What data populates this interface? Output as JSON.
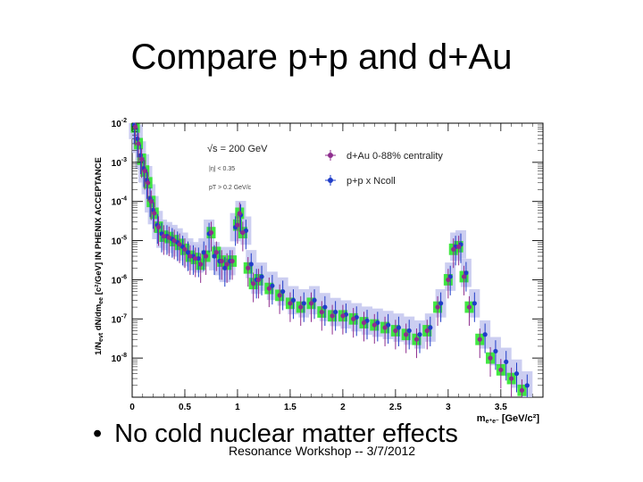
{
  "slide": {
    "title": "Compare p+p and d+Au",
    "bullet_marker": "•",
    "bullet": "No cold nuclear matter effects",
    "footer": "Resonance Workshop -- 3/7/2012"
  },
  "chart_data": {
    "type": "scatter",
    "title": "",
    "ylabel": "1/Nevt dN/dmee [c²/GeV] IN PHENIX ACCEPTANCE",
    "ylabel_parts": {
      "pre": "1/N",
      "sub1": "evt",
      "mid": " dN/dm",
      "sub2": "ee",
      "post": " [c²/GeV] IN PHENIX ACCEPTANCE"
    },
    "xlabel_parts": {
      "pre": "m",
      "sub": "e⁺e⁻",
      "post": " [GeV/c²]"
    },
    "x_scale": "linear",
    "y_scale": "log",
    "xlim": [
      0,
      3.9
    ],
    "ylim_exp": [
      -9,
      -2
    ],
    "xticks": [
      0,
      0.5,
      1,
      1.5,
      2,
      2.5,
      3,
      3.5
    ],
    "xtick_labels": [
      "0",
      "0.5",
      "1",
      "1.5",
      "2",
      "2.5",
      "3",
      "3.5"
    ],
    "yticks_exp": [
      -8,
      -7,
      -6,
      -5,
      -4,
      -3,
      -2
    ],
    "annotations": {
      "sqrt_s": "√s = 200 GeV",
      "eta_cut": "|η| < 0.35",
      "pt_cut": "pT > 0.2 GeV/c"
    },
    "legend_position": "top-right",
    "colors": {
      "dau": "#8e2d8e",
      "pp": "#1f3cc8",
      "sys_pp": "#c3c6ee",
      "sys_dau": "#2ee62e"
    },
    "series": [
      {
        "name": "d+Au 0-88% centrality",
        "x": [
          0.03,
          0.06,
          0.09,
          0.12,
          0.15,
          0.18,
          0.21,
          0.25,
          0.3,
          0.35,
          0.4,
          0.45,
          0.5,
          0.55,
          0.6,
          0.65,
          0.7,
          0.75,
          0.8,
          0.85,
          0.9,
          0.95,
          1.0,
          1.02,
          1.05,
          1.1,
          1.15,
          1.2,
          1.3,
          1.4,
          1.5,
          1.6,
          1.7,
          1.8,
          1.9,
          2.0,
          2.1,
          2.2,
          2.3,
          2.4,
          2.5,
          2.6,
          2.7,
          2.8,
          2.9,
          3.0,
          3.05,
          3.1,
          3.15,
          3.2,
          3.3,
          3.4,
          3.5,
          3.6,
          3.7
        ],
        "y": [
          0.008,
          0.003,
          0.0012,
          0.0006,
          0.0003,
          0.0001,
          5e-05,
          2.2e-05,
          1.3e-05,
          1.2e-05,
          1e-05,
          8e-06,
          6e-06,
          4e-06,
          3.5e-06,
          2.5e-06,
          4e-06,
          1.6e-05,
          5e-06,
          3e-06,
          2.5e-06,
          3e-06,
          2.5e-05,
          5e-05,
          1.6e-05,
          2e-06,
          8e-07,
          1e-06,
          6e-07,
          4e-07,
          2.5e-07,
          2e-07,
          2.5e-07,
          1.5e-07,
          1.2e-07,
          1.2e-07,
          1e-07,
          8e-08,
          7e-08,
          6e-08,
          5e-08,
          4e-08,
          3e-08,
          5e-08,
          2e-07,
          1e-06,
          6e-06,
          7e-06,
          1.2e-06,
          2e-07,
          3e-08,
          1e-08,
          5e-09,
          3e-09,
          1.5e-09
        ]
      },
      {
        "name": "p+p x Ncoll",
        "x": [
          0.02,
          0.05,
          0.08,
          0.11,
          0.14,
          0.17,
          0.2,
          0.24,
          0.28,
          0.33,
          0.38,
          0.43,
          0.48,
          0.53,
          0.58,
          0.63,
          0.68,
          0.73,
          0.78,
          0.83,
          0.88,
          0.93,
          0.98,
          1.03,
          1.08,
          1.13,
          1.18,
          1.23,
          1.33,
          1.43,
          1.53,
          1.63,
          1.73,
          1.83,
          1.93,
          2.03,
          2.13,
          2.23,
          2.33,
          2.43,
          2.53,
          2.63,
          2.73,
          2.83,
          2.93,
          3.02,
          3.07,
          3.12,
          3.17,
          3.25,
          3.35,
          3.45,
          3.55,
          3.65,
          3.75
        ],
        "y": [
          0.009,
          0.004,
          0.0015,
          0.0007,
          0.00035,
          0.00012,
          6e-05,
          2.5e-05,
          1.5e-05,
          1.3e-05,
          1.1e-05,
          9e-06,
          7e-06,
          5e-06,
          4e-06,
          3.5e-06,
          5e-06,
          1.5e-05,
          4e-06,
          3e-06,
          2e-06,
          3e-06,
          2.2e-05,
          4.5e-05,
          1.8e-05,
          2.5e-06,
          1e-06,
          1.2e-06,
          7e-07,
          5e-07,
          3e-07,
          2.5e-07,
          3e-07,
          2e-07,
          1.5e-07,
          1.3e-07,
          1.1e-07,
          9e-08,
          8e-08,
          7e-08,
          6e-08,
          5e-08,
          4e-08,
          6e-08,
          2.5e-07,
          1.2e-06,
          7e-06,
          8e-06,
          1.5e-06,
          2.5e-07,
          4e-08,
          1.5e-08,
          8e-09,
          4e-09,
          2e-09
        ]
      }
    ]
  }
}
